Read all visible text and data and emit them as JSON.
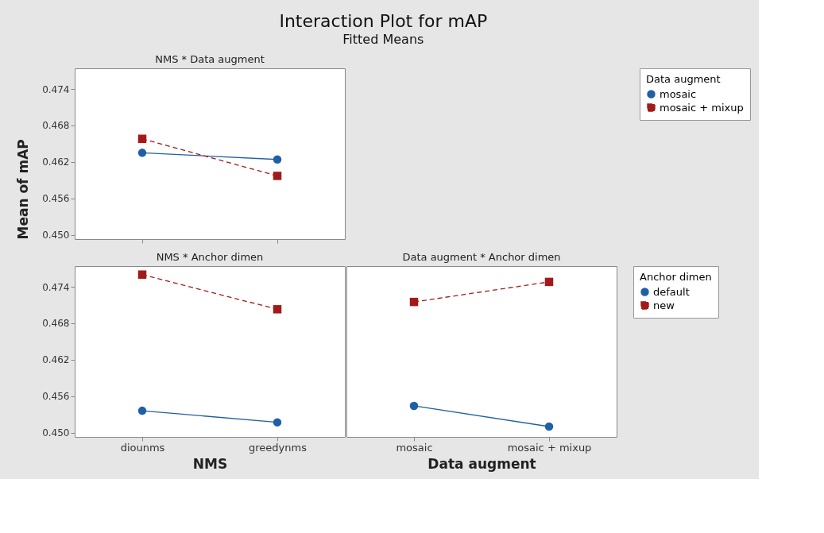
{
  "chart_data": [
    {
      "type": "other",
      "title": "Interaction Plot for mAP",
      "subtitle": "Fitted Means"
    },
    {
      "type": "line",
      "title": "NMS * Data augment",
      "ylabel": "Mean of mAP",
      "categories": [
        "diounms",
        "greedynms"
      ],
      "ylim": [
        0.4493,
        0.4774
      ],
      "yticks": [
        {
          "value": 0.45,
          "label": "0.450"
        },
        0.456,
        0.462,
        0.468,
        0.474
      ],
      "tick_labels": "y",
      "grid": false,
      "legend": "right",
      "legend_title": "Data augment",
      "series": [
        {
          "name": "mosaic",
          "color": "#1f5fa6",
          "marker": "circle",
          "line_style": "solid",
          "values": [
            0.4635,
            0.4624
          ]
        },
        {
          "name": "mosaic + mixup",
          "color": "#a31a1a",
          "marker": "square",
          "line_style": "dashed",
          "values": [
            0.4658,
            0.4597
          ]
        }
      ]
    },
    {
      "type": "line",
      "title": "NMS * Anchor dimen",
      "xlabel": "NMS",
      "categories": [
        "diounms",
        "greedynms"
      ],
      "ylim": [
        0.4493,
        0.4774
      ],
      "yticks": [
        {
          "value": 0.45,
          "label": "0.450"
        },
        0.456,
        0.462,
        0.468,
        0.474
      ],
      "grid": false,
      "legend": "right",
      "legend_title": "Anchor dimen",
      "series": [
        {
          "name": "default",
          "color": "#1f5fa6",
          "marker": "circle",
          "line_style": "solid",
          "values": [
            0.4536,
            0.4517
          ]
        },
        {
          "name": "new",
          "color": "#a31a1a",
          "marker": "square",
          "line_style": "dashed",
          "values": [
            0.476,
            0.4703
          ]
        }
      ]
    },
    {
      "type": "line",
      "title": "Data augment * Anchor dimen",
      "xlabel": "Data augment",
      "categories": [
        "mosaic",
        "mosaic + mixup"
      ],
      "ylim": [
        0.4493,
        0.4774
      ],
      "yticks": [
        0.45,
        0.456,
        0.462,
        0.468,
        0.474
      ],
      "tick_labels": "x",
      "grid": false,
      "series": [
        {
          "name": "default",
          "color": "#1f5fa6",
          "marker": "circle",
          "line_style": "solid",
          "values": [
            0.4544,
            0.451
          ]
        },
        {
          "name": "new",
          "color": "#a31a1a",
          "marker": "square",
          "line_style": "dashed",
          "values": [
            0.4715,
            0.4748
          ]
        }
      ]
    }
  ]
}
